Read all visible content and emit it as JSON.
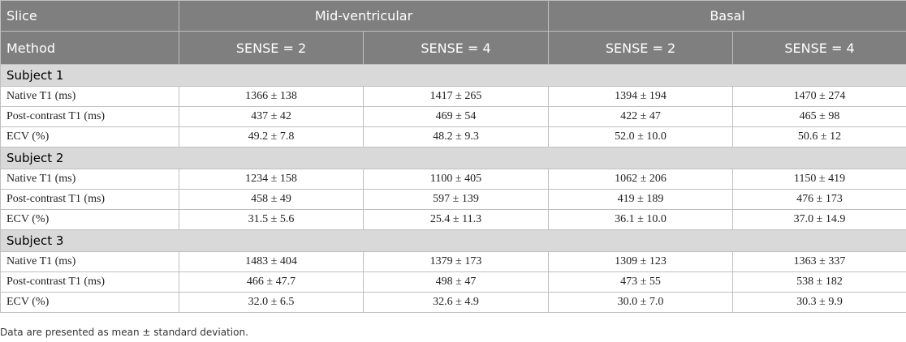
{
  "table": {
    "header": {
      "slice": "Slice",
      "groups": [
        "Mid-ventricular",
        "Basal"
      ],
      "method": "Method",
      "columns": [
        "SENSE = 2",
        "SENSE = 4",
        "SENSE = 2",
        "SENSE = 4"
      ]
    },
    "subjects": [
      {
        "title": "Subject 1",
        "rows": [
          [
            "Native T1 (ms)",
            "1366 ± 138",
            "1417 ± 265",
            "1394 ± 194",
            "1470 ± 274"
          ],
          [
            "Post-contrast T1 (ms)",
            "437 ± 42",
            "469 ± 54",
            "422 ± 47",
            "465 ± 98"
          ],
          [
            "ECV (%)",
            "49.2 ± 7.8",
            "48.2 ± 9.3",
            "52.0 ± 10.0",
            "50.6 ± 12"
          ]
        ]
      },
      {
        "title": "Subject 2",
        "rows": [
          [
            "Native T1 (ms)",
            "1234 ± 158",
            "1100 ± 405",
            "1062 ± 206",
            "1150 ± 419"
          ],
          [
            "Post-contrast T1 (ms)",
            "458 ± 49",
            "597 ± 139",
            "419 ± 189",
            "476 ± 173"
          ],
          [
            "ECV (%)",
            "31.5 ± 5.6",
            "25.4 ± 11.3",
            "36.1 ± 10.0",
            "37.0 ± 14.9"
          ]
        ]
      },
      {
        "title": "Subject 3",
        "rows": [
          [
            "Native T1 (ms)",
            "1483 ± 404",
            "1379 ± 173",
            "1309 ± 123",
            "1363 ± 337"
          ],
          [
            "Post-contrast T1 (ms)",
            "466 ± 47.7",
            "498 ± 47",
            "473 ± 55",
            "538 ± 182"
          ],
          [
            "ECV (%)",
            "32.0 ± 6.5",
            "32.6 ± 4.9",
            "30.0 ± 7.0",
            "30.3 ± 9.9"
          ]
        ]
      }
    ]
  },
  "note": "Data are presented as mean ± standard deviation."
}
